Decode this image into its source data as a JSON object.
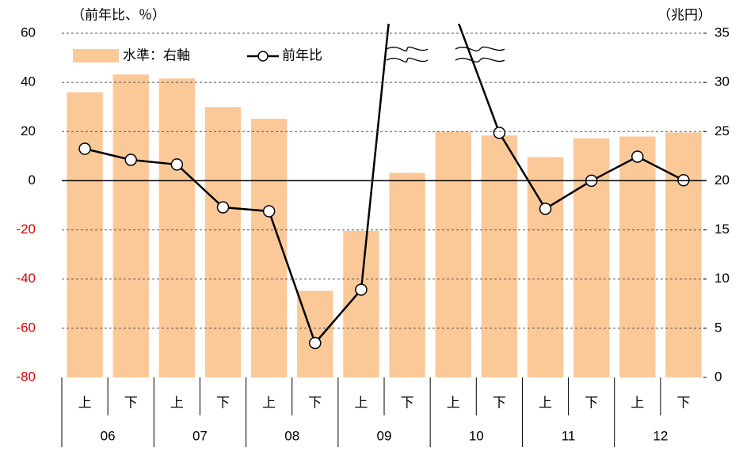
{
  "chart_data": {
    "type": "bar_line",
    "left_axis_label": "（前年比、％）",
    "right_axis_label": "（兆円）",
    "categories": [
      "上",
      "下",
      "上",
      "下",
      "上",
      "下",
      "上",
      "下",
      "上",
      "下",
      "上",
      "下",
      "上",
      "下"
    ],
    "groups": [
      "06",
      "07",
      "08",
      "09",
      "10",
      "11",
      "12"
    ],
    "series": [
      {
        "name": "水準：右軸",
        "type": "bar",
        "axis": "y2",
        "color": "#fbc898",
        "values": [
          29.0,
          30.8,
          30.4,
          27.5,
          26.3,
          8.8,
          14.9,
          20.8,
          25.0,
          24.6,
          22.4,
          24.3,
          24.5,
          24.9
        ]
      },
      {
        "name": "前年比",
        "type": "line",
        "color": "#000000",
        "values": [
          13.0,
          8.5,
          6.6,
          -10.8,
          -12.4,
          -66.0,
          -44.3,
          137,
          70,
          19.5,
          -11.4,
          0,
          9.8,
          0.2
        ]
      }
    ],
    "ylim": [
      -80,
      60
    ],
    "yticks": [
      -80,
      -60,
      -40,
      -20,
      0,
      20,
      40,
      60
    ],
    "y2lim": [
      0,
      35
    ],
    "y2ticks": [
      0,
      5,
      10,
      15,
      20,
      25,
      30,
      35
    ],
    "negative_tick_color": "#e00000",
    "grid": true
  }
}
